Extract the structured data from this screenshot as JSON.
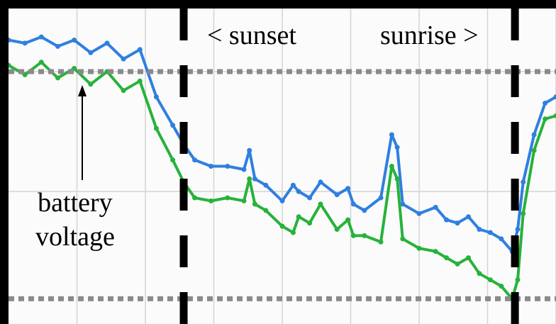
{
  "annotations": {
    "sunset": "< sunset",
    "sunrise": "sunrise >",
    "battery_line1": "battery",
    "battery_line2": "voltage"
  },
  "colors": {
    "series_blue": "#2f7fe0",
    "series_green": "#27b23a",
    "reference_line": "#8a8a8a",
    "event_line": "#000000",
    "grid": "#d4d4d4"
  },
  "chart_data": {
    "type": "line",
    "title": "",
    "xlabel": "",
    "ylabel": "",
    "grid": true,
    "x_range": [
      0,
      100
    ],
    "y_range": [
      0,
      100
    ],
    "reference_lines_y": [
      80,
      8
    ],
    "event_lines_x": [
      32,
      92.5
    ],
    "series": [
      {
        "color": "#2f7fe0",
        "x": [
          0,
          3,
          6,
          9,
          12,
          15,
          18,
          21,
          24,
          27,
          30,
          32,
          34,
          37,
          40,
          43,
          44,
          45,
          47,
          50,
          52,
          53,
          55,
          57,
          60,
          62,
          63,
          65,
          68,
          70,
          71,
          72,
          75,
          78,
          80,
          82,
          84,
          86,
          88,
          90,
          92,
          93,
          94,
          96,
          98,
          100
        ],
        "y": [
          90,
          89,
          91,
          88,
          90,
          86,
          89,
          84,
          87,
          72,
          63,
          57,
          52,
          50,
          50,
          49,
          55,
          46,
          44,
          39,
          44,
          42,
          40,
          45,
          41,
          43,
          38,
          36,
          40,
          60,
          56,
          38,
          35,
          37,
          33,
          32,
          34,
          30,
          29,
          27,
          23,
          30,
          45,
          60,
          70,
          72
        ]
      },
      {
        "color": "#27b23a",
        "x": [
          0,
          3,
          6,
          9,
          12,
          15,
          18,
          21,
          24,
          27,
          30,
          32,
          34,
          37,
          40,
          43,
          44,
          45,
          47,
          50,
          52,
          53,
          55,
          57,
          60,
          62,
          63,
          65,
          68,
          70,
          71,
          72,
          75,
          78,
          80,
          82,
          84,
          86,
          88,
          90,
          92,
          93,
          94,
          96,
          98,
          100
        ],
        "y": [
          82,
          79,
          83,
          78,
          81,
          76,
          80,
          74,
          77,
          62,
          52,
          45,
          40,
          39,
          40,
          39,
          46,
          38,
          36,
          31,
          29,
          34,
          32,
          38,
          30,
          33,
          28,
          28,
          26,
          50,
          46,
          27,
          24,
          23,
          21,
          19,
          21,
          16,
          14,
          12,
          8,
          14,
          35,
          55,
          65,
          66
        ]
      }
    ]
  }
}
